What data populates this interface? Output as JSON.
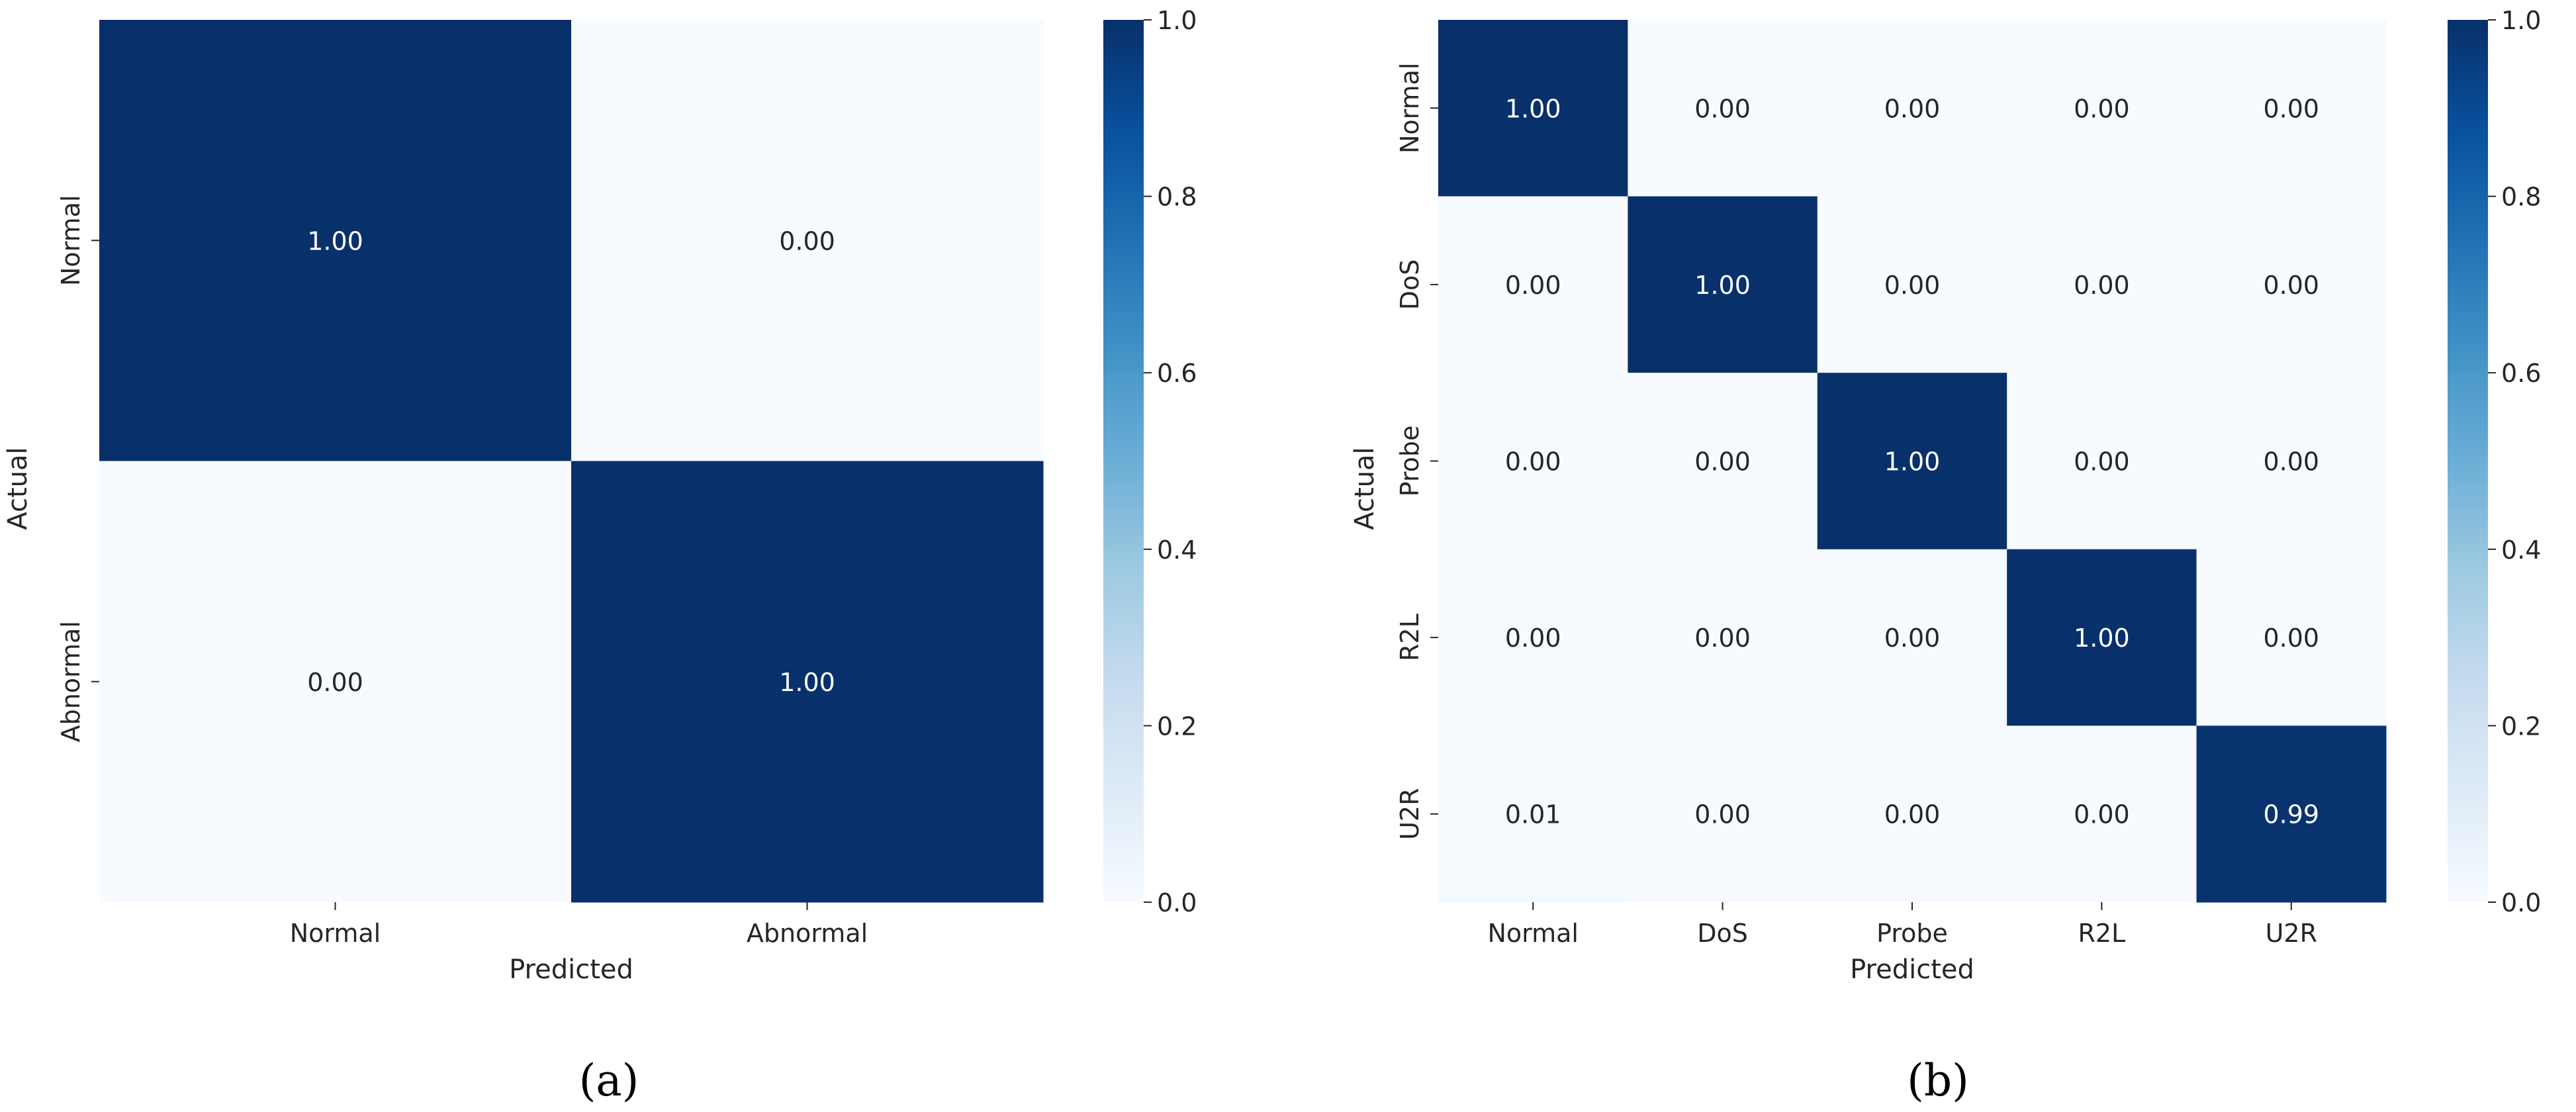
{
  "figure": {
    "panels": [
      {
        "caption_label": "a",
        "caption": "(a)"
      },
      {
        "caption_label": "b",
        "caption": "(b)"
      }
    ]
  },
  "colors": {
    "cmap": "Blues",
    "low": "#f7fbff",
    "high": "#08306b",
    "text_dark": "#262626",
    "text_light": "#ffffff"
  },
  "chart_data": [
    {
      "type": "heatmap",
      "panel": "a",
      "title": "",
      "xlabel": "Predicted",
      "ylabel": "Actual",
      "x_categories": [
        "Normal",
        "Abnormal"
      ],
      "y_categories": [
        "Normal",
        "Abnormal"
      ],
      "values": [
        [
          1.0,
          0.0
        ],
        [
          0.0,
          1.0
        ]
      ],
      "value_format": "0.00",
      "colorbar": {
        "range": [
          0.0,
          1.0
        ],
        "ticks": [
          "0.0",
          "0.2",
          "0.4",
          "0.6",
          "0.8",
          "1.0"
        ]
      }
    },
    {
      "type": "heatmap",
      "panel": "b",
      "title": "",
      "xlabel": "Predicted",
      "ylabel": "Actual",
      "x_categories": [
        "Normal",
        "DoS",
        "Probe",
        "R2L",
        "U2R"
      ],
      "y_categories": [
        "Normal",
        "DoS",
        "Probe",
        "R2L",
        "U2R"
      ],
      "values": [
        [
          1.0,
          0.0,
          0.0,
          0.0,
          0.0
        ],
        [
          0.0,
          1.0,
          0.0,
          0.0,
          0.0
        ],
        [
          0.0,
          0.0,
          1.0,
          0.0,
          0.0
        ],
        [
          0.0,
          0.0,
          0.0,
          1.0,
          0.0
        ],
        [
          0.01,
          0.0,
          0.0,
          0.0,
          0.99
        ]
      ],
      "value_format": "0.00",
      "colorbar": {
        "range": [
          0.0,
          1.0
        ],
        "ticks": [
          "0.0",
          "0.2",
          "0.4",
          "0.6",
          "0.8",
          "1.0"
        ]
      }
    }
  ]
}
